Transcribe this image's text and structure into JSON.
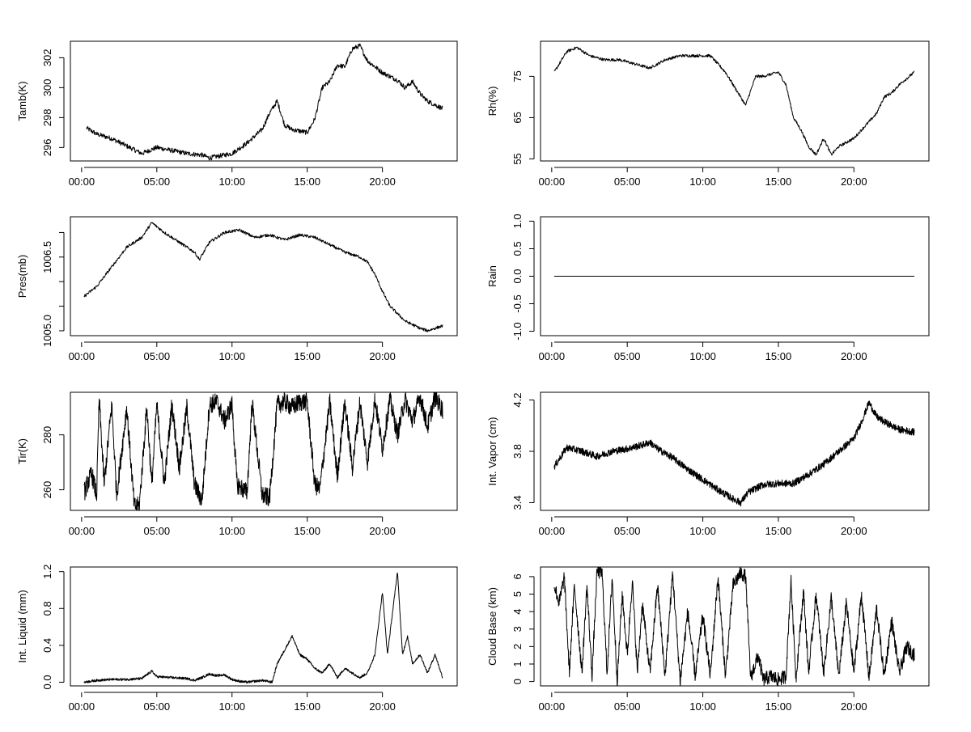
{
  "chart_data": [
    {
      "type": "line",
      "ylabel": "Tamb(K)",
      "x": [
        "00:20",
        "01:00",
        "02:00",
        "03:00",
        "04:00",
        "05:00",
        "06:00",
        "07:00",
        "08:00",
        "08:30",
        "09:00",
        "10:00",
        "11:00",
        "12:00",
        "12:30",
        "13:00",
        "13:30",
        "14:00",
        "15:00",
        "15:30",
        "16:00",
        "16:30",
        "17:00",
        "17:30",
        "18:00",
        "18:30",
        "19:00",
        "19:30",
        "20:00",
        "21:00",
        "21:30",
        "22:00",
        "22:30",
        "23:00",
        "24:00"
      ],
      "y": [
        297.3,
        296.9,
        296.6,
        296.1,
        295.6,
        296.0,
        295.8,
        295.6,
        295.5,
        295.3,
        295.4,
        295.6,
        296.3,
        297.2,
        298.3,
        299.1,
        297.5,
        297.2,
        297.0,
        297.9,
        300.0,
        300.4,
        301.5,
        301.4,
        302.6,
        302.8,
        301.8,
        301.4,
        301.0,
        300.5,
        300.0,
        300.4,
        299.6,
        299.1,
        298.6
      ],
      "xticks": [
        "00:00",
        "05:00",
        "10:00",
        "15:00",
        "20:00"
      ],
      "yticks": [
        296,
        298,
        300,
        302
      ],
      "xlim": [
        "00:00",
        "24:00"
      ],
      "ylim": [
        295.1,
        303.1
      ],
      "grid": false
    },
    {
      "type": "line",
      "ylabel": "Rh(%)",
      "x": [
        "00:10",
        "01:00",
        "01:40",
        "02:30",
        "03:30",
        "04:30",
        "05:30",
        "06:30",
        "07:30",
        "08:30",
        "09:30",
        "10:30",
        "11:30",
        "12:00",
        "12:30",
        "12:50",
        "13:30",
        "14:00",
        "15:00",
        "15:30",
        "16:00",
        "16:30",
        "17:00",
        "17:30",
        "18:00",
        "18:30",
        "19:00",
        "19:30",
        "20:00",
        "21:00",
        "21:30",
        "22:00",
        "22:30",
        "23:00",
        "24:00"
      ],
      "y": [
        76,
        81,
        82,
        80,
        79,
        79,
        78,
        77,
        79,
        80,
        80,
        80,
        76,
        73,
        70,
        68,
        75,
        75,
        76,
        73,
        65,
        62,
        58,
        56,
        60,
        56,
        58,
        59,
        60,
        64,
        66,
        70,
        71,
        73,
        76
      ],
      "xticks": [
        "00:00",
        "05:00",
        "10:00",
        "15:00",
        "20:00"
      ],
      "yticks": [
        55,
        65,
        75
      ],
      "xlim": [
        "00:00",
        "24:00"
      ],
      "ylim": [
        54.5,
        83.5
      ],
      "grid": false
    },
    {
      "type": "line",
      "ylabel": "Pres(mb)",
      "x": [
        "00:10",
        "01:00",
        "02:00",
        "03:00",
        "04:00",
        "04:40",
        "05:30",
        "06:30",
        "07:30",
        "07:50",
        "08:30",
        "09:30",
        "10:30",
        "11:30",
        "12:30",
        "13:30",
        "14:30",
        "15:30",
        "16:30",
        "17:30",
        "18:30",
        "19:00",
        "19:30",
        "20:00",
        "20:30",
        "21:30",
        "22:30",
        "23:00",
        "24:00"
      ],
      "y": [
        1005.7,
        1005.9,
        1006.3,
        1006.7,
        1006.9,
        1007.2,
        1007.0,
        1006.8,
        1006.6,
        1006.45,
        1006.8,
        1007.0,
        1007.05,
        1006.9,
        1006.95,
        1006.85,
        1006.95,
        1006.9,
        1006.75,
        1006.6,
        1006.5,
        1006.4,
        1006.15,
        1005.8,
        1005.5,
        1005.2,
        1005.05,
        1005.0,
        1005.1
      ],
      "xticks": [
        "00:00",
        "05:00",
        "10:00",
        "15:00",
        "20:00"
      ],
      "yticks": [
        1005.0,
        1006.5
      ],
      "hidden_yticks": [
        1005.5,
        1006.0,
        1007.0
      ],
      "xlim": [
        "00:00",
        "24:00"
      ],
      "ylim": [
        1004.9,
        1007.32
      ],
      "grid": false
    },
    {
      "type": "line",
      "ylabel": "Rain",
      "x": [
        "00:10",
        "24:00"
      ],
      "y": [
        0.0,
        0.0
      ],
      "xticks": [
        "00:00",
        "05:00",
        "10:00",
        "15:00",
        "20:00"
      ],
      "yticks": [
        -1.0,
        -0.5,
        0.0,
        0.5,
        1.0
      ],
      "xlim": [
        "00:00",
        "24:00"
      ],
      "ylim": [
        -1.08,
        1.08
      ],
      "grid": false
    },
    {
      "type": "line",
      "ylabel": "Tir(K)",
      "x": [
        "00:10",
        "00:40",
        "01:00",
        "01:10",
        "01:30",
        "02:00",
        "02:20",
        "03:00",
        "03:30",
        "03:50",
        "04:20",
        "04:40",
        "05:00",
        "05:30",
        "06:00",
        "06:30",
        "07:00",
        "07:30",
        "08:00",
        "08:30",
        "09:00",
        "09:30",
        "10:00",
        "10:20",
        "11:00",
        "11:20",
        "12:00",
        "12:30",
        "13:00",
        "13:30",
        "14:00",
        "14:30",
        "15:00",
        "15:30",
        "15:50",
        "16:30",
        "17:00",
        "17:30",
        "18:00",
        "18:30",
        "19:00",
        "19:30",
        "20:00",
        "20:30",
        "21:00",
        "21:30",
        "22:00",
        "22:30",
        "23:00",
        "23:30",
        "24:00"
      ],
      "y": [
        259,
        266,
        258,
        293,
        262,
        291,
        258,
        290,
        254,
        254,
        290,
        262,
        291,
        262,
        291,
        268,
        290,
        262,
        256,
        291,
        292,
        285,
        291,
        262,
        259,
        292,
        258,
        257,
        291,
        292,
        290,
        292,
        292,
        262,
        260,
        292,
        265,
        292,
        268,
        292,
        270,
        293,
        275,
        293,
        280,
        293,
        285,
        294,
        283,
        294,
        289
      ],
      "xticks": [
        "00:00",
        "05:00",
        "10:00",
        "15:00",
        "20:00"
      ],
      "yticks": [
        260,
        280
      ],
      "xlim": [
        "00:00",
        "24:00"
      ],
      "ylim": [
        252.5,
        295.5
      ],
      "grid": false
    },
    {
      "type": "line",
      "ylabel": "Int. Vapor (cm)",
      "x": [
        "00:10",
        "01:00",
        "02:00",
        "03:00",
        "04:00",
        "05:00",
        "06:00",
        "06:30",
        "07:00",
        "08:00",
        "09:00",
        "10:00",
        "11:00",
        "12:00",
        "12:30",
        "13:00",
        "14:00",
        "15:00",
        "16:00",
        "17:00",
        "18:00",
        "19:00",
        "20:00",
        "20:30",
        "21:00",
        "21:30",
        "22:00",
        "23:00",
        "24:00"
      ],
      "y": [
        3.68,
        3.83,
        3.8,
        3.76,
        3.8,
        3.82,
        3.85,
        3.87,
        3.82,
        3.75,
        3.66,
        3.58,
        3.5,
        3.43,
        3.4,
        3.48,
        3.54,
        3.55,
        3.55,
        3.62,
        3.7,
        3.8,
        3.9,
        4.03,
        4.18,
        4.07,
        4.03,
        3.97,
        3.95
      ],
      "xticks": [
        "00:00",
        "05:00",
        "10:00",
        "15:00",
        "20:00"
      ],
      "yticks": [
        3.4,
        3.8,
        4.2
      ],
      "xlim": [
        "00:00",
        "24:00"
      ],
      "ylim": [
        3.34,
        4.26
      ],
      "grid": false
    },
    {
      "type": "line",
      "ylabel": "Int. Liquid (mm)",
      "x": [
        "00:10",
        "01:00",
        "02:00",
        "03:00",
        "04:00",
        "04:40",
        "05:00",
        "06:00",
        "07:00",
        "07:30",
        "08:00",
        "08:30",
        "09:00",
        "09:30",
        "10:00",
        "10:30",
        "11:00",
        "12:00",
        "12:40",
        "13:00",
        "13:30",
        "14:00",
        "14:30",
        "15:00",
        "15:30",
        "16:00",
        "16:30",
        "17:00",
        "17:30",
        "18:00",
        "18:30",
        "19:00",
        "19:30",
        "20:00",
        "20:20",
        "20:40",
        "21:00",
        "21:20",
        "21:40",
        "22:00",
        "22:30",
        "23:00",
        "23:30",
        "24:00"
      ],
      "y": [
        0.0,
        0.02,
        0.03,
        0.03,
        0.04,
        0.12,
        0.06,
        0.05,
        0.04,
        0.02,
        0.05,
        0.09,
        0.07,
        0.08,
        0.03,
        0.01,
        0.0,
        0.02,
        0.0,
        0.2,
        0.35,
        0.5,
        0.3,
        0.25,
        0.15,
        0.1,
        0.2,
        0.05,
        0.15,
        0.1,
        0.05,
        0.1,
        0.3,
        0.98,
        0.3,
        0.75,
        1.2,
        0.3,
        0.5,
        0.2,
        0.3,
        0.1,
        0.3,
        0.05
      ],
      "xticks": [
        "00:00",
        "05:00",
        "10:00",
        "15:00",
        "20:00"
      ],
      "yticks": [
        0.0,
        0.4,
        0.8,
        1.2
      ],
      "xlim": [
        "00:00",
        "24:00"
      ],
      "ylim": [
        -0.04,
        1.25
      ],
      "grid": false
    },
    {
      "type": "line",
      "ylabel": "Cloud Base (km)",
      "x": [
        "00:10",
        "00:30",
        "00:50",
        "01:10",
        "01:30",
        "02:00",
        "02:20",
        "02:40",
        "03:00",
        "03:20",
        "03:40",
        "04:00",
        "04:20",
        "04:40",
        "05:00",
        "05:20",
        "05:40",
        "06:00",
        "06:30",
        "07:00",
        "07:30",
        "08:00",
        "08:30",
        "09:00",
        "09:30",
        "10:00",
        "10:30",
        "11:00",
        "11:30",
        "12:00",
        "12:30",
        "12:50",
        "13:10",
        "13:40",
        "14:00",
        "14:30",
        "15:00",
        "15:30",
        "15:50",
        "16:10",
        "16:40",
        "17:00",
        "17:30",
        "18:00",
        "18:30",
        "19:00",
        "19:30",
        "20:00",
        "20:30",
        "21:00",
        "21:30",
        "22:00",
        "22:30",
        "23:00",
        "23:30",
        "24:00"
      ],
      "y": [
        5.5,
        4.5,
        6.0,
        0.5,
        5.5,
        0.5,
        5.5,
        0.3,
        6.3,
        6.2,
        0.5,
        6.0,
        0.0,
        5.0,
        1.5,
        5.8,
        0.5,
        4.5,
        0.5,
        5.5,
        0.3,
        6.2,
        0.0,
        4.0,
        0.3,
        3.8,
        0.3,
        6.0,
        0.3,
        5.5,
        6.2,
        6.0,
        0.2,
        1.5,
        0.1,
        0.3,
        0.1,
        0.3,
        5.8,
        0.2,
        5.2,
        0.5,
        5.0,
        0.5,
        4.8,
        0.3,
        4.5,
        0.5,
        5.0,
        0.2,
        4.2,
        0.3,
        3.5,
        0.5,
        2.0,
        1.5
      ],
      "xticks": [
        "00:00",
        "05:00",
        "10:00",
        "15:00",
        "20:00"
      ],
      "yticks": [
        0,
        1,
        2,
        3,
        4,
        5,
        6
      ],
      "xlim": [
        "00:00",
        "24:00"
      ],
      "ylim": [
        -0.25,
        6.55
      ],
      "grid": false
    }
  ]
}
